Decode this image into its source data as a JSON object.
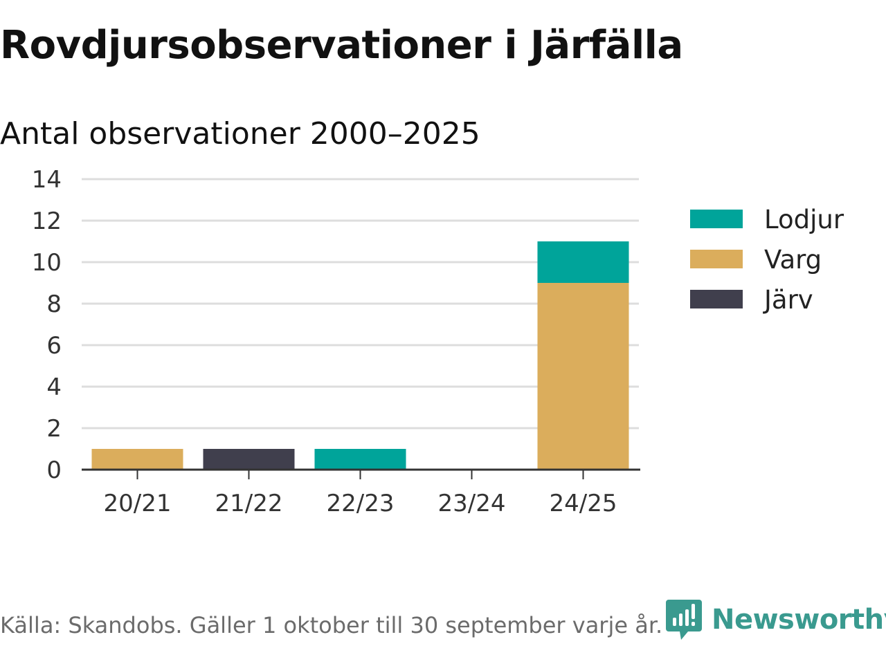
{
  "title": "Rovdjursobservationer i Järfälla",
  "subtitle": "Antal observationer 2000–2025",
  "source": "Källa: Skandobs. Gäller 1 oktober till 30 september varje år.",
  "brand": {
    "name": "Newsworthy",
    "icon": "newsworthy-logo-icon",
    "color": "#3a9a8f"
  },
  "colors": {
    "Lodjur": "#00a49a",
    "Varg": "#dbad5c",
    "Järv": "#403f4d",
    "grid": "#dddddd",
    "axis": "#333333"
  },
  "chart_data": {
    "type": "bar",
    "stacked": true,
    "title": "Rovdjursobservationer i Järfälla",
    "subtitle": "Antal observationer 2000–2025",
    "xlabel": "",
    "ylabel": "",
    "categories": [
      "20/21",
      "21/22",
      "22/23",
      "23/24",
      "24/25"
    ],
    "series": [
      {
        "name": "Järv",
        "values": [
          0,
          1,
          0,
          0,
          0
        ]
      },
      {
        "name": "Varg",
        "values": [
          1,
          0,
          0,
          0,
          9
        ]
      },
      {
        "name": "Lodjur",
        "values": [
          0,
          0,
          1,
          0,
          2
        ]
      }
    ],
    "ylim": [
      0,
      14
    ],
    "yticks": [
      0,
      2,
      4,
      6,
      8,
      10,
      12,
      14
    ],
    "grid": true,
    "legend": {
      "position": "right",
      "order": [
        "Lodjur",
        "Varg",
        "Järv"
      ]
    }
  }
}
